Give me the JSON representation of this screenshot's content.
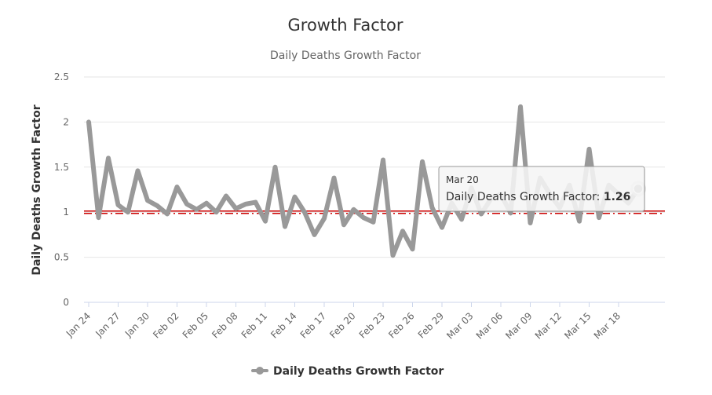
{
  "chart_data": {
    "type": "line",
    "title": "Growth Factor",
    "subtitle": "Daily Deaths Growth Factor",
    "ylabel": "Daily Deaths Growth Factor",
    "xlabel": "",
    "ylim": [
      0,
      2.5
    ],
    "y_ticks": [
      "0",
      "0.5",
      "1",
      "1.5",
      "2",
      "2.5"
    ],
    "y_tick_values": [
      0,
      0.5,
      1,
      1.5,
      2,
      2.5
    ],
    "x_tick_labels": [
      "Jan 24",
      "Jan 27",
      "Jan 30",
      "Feb 02",
      "Feb 05",
      "Feb 08",
      "Feb 11",
      "Feb 14",
      "Feb 17",
      "Feb 20",
      "Feb 23",
      "Feb 26",
      "Feb 29",
      "Mar 03",
      "Mar 06",
      "Mar 09",
      "Mar 12",
      "Mar 15",
      "Mar 18"
    ],
    "reference_line": 1,
    "reference_color": "#cc0000",
    "grid": "horizontal",
    "legend": "bottom-center",
    "series": [
      {
        "name": "Daily Deaths Growth Factor",
        "color": "#999999",
        "x": [
          "Jan 24",
          "Jan 25",
          "Jan 26",
          "Jan 27",
          "Jan 28",
          "Jan 29",
          "Jan 30",
          "Jan 31",
          "Feb 01",
          "Feb 02",
          "Feb 03",
          "Feb 04",
          "Feb 05",
          "Feb 06",
          "Feb 07",
          "Feb 08",
          "Feb 09",
          "Feb 10",
          "Feb 11",
          "Feb 12",
          "Feb 13",
          "Feb 14",
          "Feb 15",
          "Feb 16",
          "Feb 17",
          "Feb 18",
          "Feb 19",
          "Feb 20",
          "Feb 21",
          "Feb 22",
          "Feb 23",
          "Feb 24",
          "Feb 25",
          "Feb 26",
          "Feb 27",
          "Feb 28",
          "Feb 29",
          "Mar 01",
          "Mar 02",
          "Mar 03",
          "Mar 04",
          "Mar 05",
          "Mar 06",
          "Mar 07",
          "Mar 08",
          "Mar 09",
          "Mar 10",
          "Mar 11",
          "Mar 12",
          "Mar 13",
          "Mar 14",
          "Mar 15",
          "Mar 16",
          "Mar 17",
          "Mar 18",
          "Mar 19",
          "Mar 20"
        ],
        "values": [
          2.0,
          0.94,
          1.6,
          1.08,
          1.0,
          1.46,
          1.13,
          1.07,
          0.98,
          1.28,
          1.09,
          1.03,
          1.1,
          1.0,
          1.18,
          1.04,
          1.09,
          1.11,
          0.9,
          1.5,
          0.84,
          1.17,
          1.0,
          0.75,
          0.93,
          1.38,
          0.86,
          1.03,
          0.94,
          0.89,
          1.58,
          0.52,
          0.79,
          0.59,
          1.56,
          1.05,
          0.83,
          1.1,
          0.92,
          1.27,
          0.98,
          1.15,
          1.2,
          0.99,
          2.17,
          0.88,
          1.38,
          1.2,
          1.05,
          1.3,
          0.9,
          1.7,
          0.94,
          1.3,
          1.2,
          1.1,
          1.26
        ]
      }
    ],
    "tooltip": {
      "date": "Mar 20",
      "label": "Daily Deaths Growth Factor:",
      "value": "1.26"
    }
  }
}
